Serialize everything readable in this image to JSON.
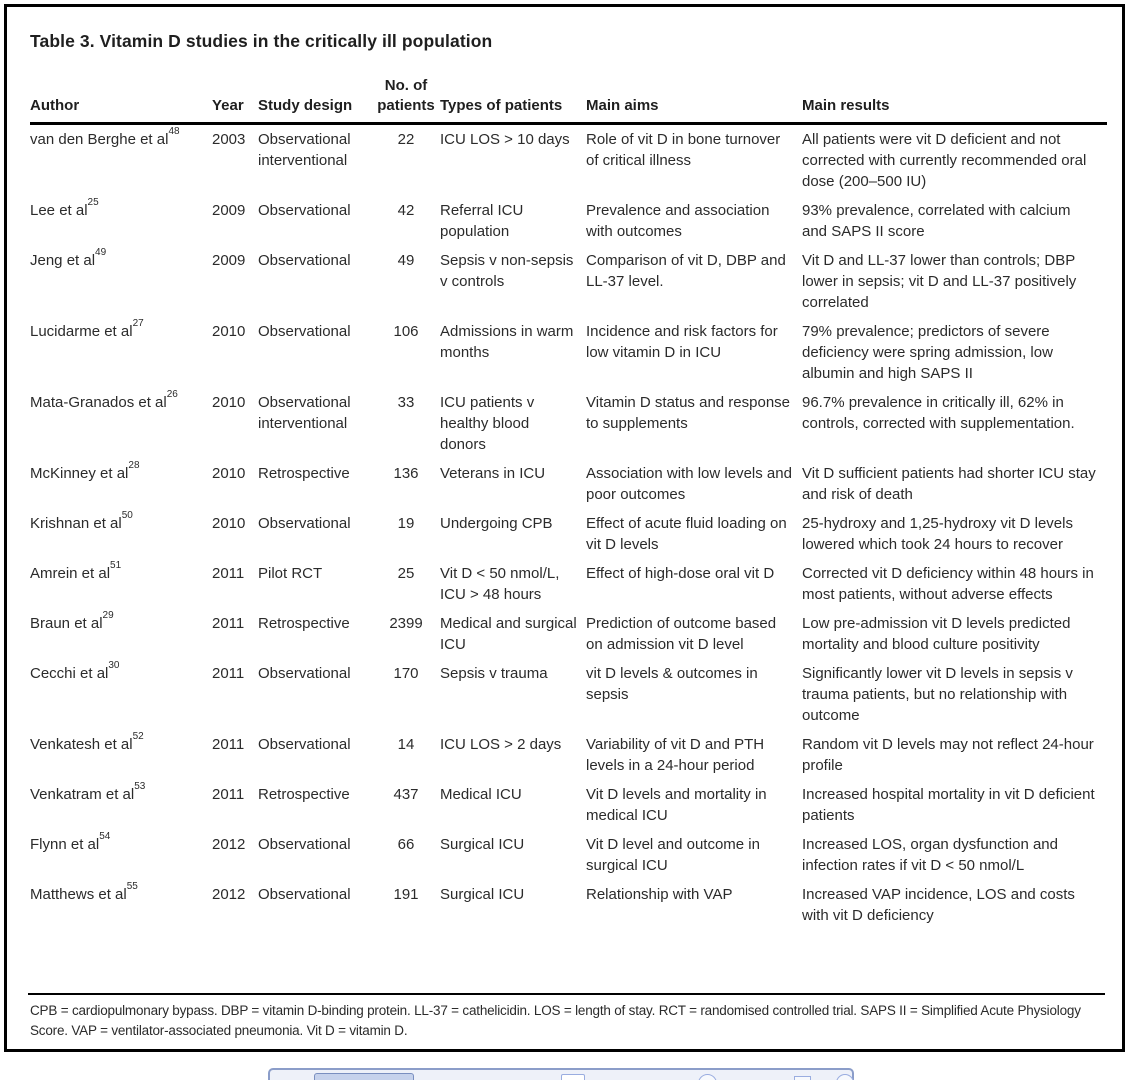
{
  "title": "Table 3. Vitamin D studies in the critically ill population",
  "table": {
    "columns": [
      "Author",
      "Year",
      "Study design",
      "No. of patients",
      "Types of patients",
      "Main aims",
      "Main results"
    ],
    "rows": [
      {
        "author": "van den Berghe et al",
        "ref": "48",
        "year": "2003",
        "design": "Observational interventional",
        "patients": "22",
        "types": "ICU LOS > 10 days",
        "aims": "Role of vit D in bone turnover of critical illness",
        "results": "All patients were vit D deficient and not corrected with currently recommended oral dose (200–500 IU)"
      },
      {
        "author": "Lee et al",
        "ref": "25",
        "year": "2009",
        "design": "Observational",
        "patients": "42",
        "types": "Referral ICU population",
        "aims": "Prevalence and association with outcomes",
        "results": "93% prevalence, correlated with calcium and SAPS II score"
      },
      {
        "author": "Jeng et al",
        "ref": "49",
        "year": "2009",
        "design": "Observational",
        "patients": "49",
        "types": "Sepsis v non-sepsis v controls",
        "aims": "Comparison of vit D, DBP and LL-37 level.",
        "results": "Vit D and LL-37 lower than controls; DBP lower in sepsis; vit D and LL-37 positively correlated"
      },
      {
        "author": "Lucidarme et al",
        "ref": "27",
        "year": "2010",
        "design": "Observational",
        "patients": "106",
        "types": "Admissions in warm months",
        "aims": "Incidence and risk factors for low vitamin D in ICU",
        "results": "79% prevalence; predictors of severe deficiency were spring admission, low albumin and high SAPS II"
      },
      {
        "author": "Mata-Granados et al",
        "ref": "26",
        "year": "2010",
        "design": "Observational interventional",
        "patients": "33",
        "types": "ICU patients v healthy blood donors",
        "aims": "Vitamin D status and response to supplements",
        "results": "96.7% prevalence in critically ill, 62% in controls, corrected with supplementation."
      },
      {
        "author": "McKinney et al",
        "ref": "28",
        "year": "2010",
        "design": "Retrospective",
        "patients": "136",
        "types": "Veterans in ICU",
        "aims": "Association with low levels and poor outcomes",
        "results": "Vit D sufficient patients had shorter ICU stay and risk of death"
      },
      {
        "author": "Krishnan et al",
        "ref": "50",
        "year": "2010",
        "design": "Observational",
        "patients": "19",
        "types": "Undergoing CPB",
        "aims": "Effect of acute fluid loading on vit D levels",
        "results": "25-hydroxy and 1,25-hydroxy vit D levels lowered which took 24 hours to recover"
      },
      {
        "author": "Amrein et al",
        "ref": "51",
        "year": "2011",
        "design": "Pilot RCT",
        "patients": "25",
        "types": "Vit D < 50 nmol/L, ICU > 48 hours",
        "aims": "Effect of high-dose oral vit D",
        "results": "Corrected vit D deficiency within 48 hours in most patients, without adverse effects"
      },
      {
        "author": "Braun et al",
        "ref": "29",
        "year": "2011",
        "design": "Retrospective",
        "patients": "2399",
        "types": "Medical and surgical ICU",
        "aims": "Prediction of outcome based on admission vit D level",
        "results": "Low pre-admission vit D levels predicted mortality and blood culture positivity"
      },
      {
        "author": "Cecchi et al",
        "ref": "30",
        "year": "2011",
        "design": "Observational",
        "patients": "170",
        "types": "Sepsis v trauma",
        "aims": "vit D levels & outcomes in sepsis",
        "results": "Significantly lower vit D levels in sepsis v trauma patients, but no relationship with outcome"
      },
      {
        "author": "Venkatesh et al",
        "ref": "52",
        "year": "2011",
        "design": "Observational",
        "patients": "14",
        "types": "ICU LOS > 2 days",
        "aims": "Variability of vit D and PTH levels in a 24-hour period",
        "results": "Random vit D levels may not reflect 24-hour profile"
      },
      {
        "author": "Venkatram et al",
        "ref": "53",
        "year": "2011",
        "design": "Retrospective",
        "patients": "437",
        "types": "Medical ICU",
        "aims": "Vit D levels and mortality in medical ICU",
        "results": "Increased hospital mortality in vit D deficient patients"
      },
      {
        "author": "Flynn et al",
        "ref": "54",
        "year": "2012",
        "design": "Observational",
        "patients": "66",
        "types": "Surgical ICU",
        "aims": "Vit D level and outcome in surgical ICU",
        "results": "Increased LOS, organ dysfunction and infection rates if vit D < 50 nmol/L"
      },
      {
        "author": "Matthews et al",
        "ref": "55",
        "year": "2012",
        "design": "Observational",
        "patients": "191",
        "types": "Surgical ICU",
        "aims": "Relationship with VAP",
        "results": "Increased VAP incidence, LOS and costs with vit D deficiency"
      }
    ]
  },
  "footnote": "CPB = cardiopulmonary bypass. DBP = vitamin D-binding protein. LL-37 = cathelicidin. LOS = length of stay. RCT = randomised controlled trial. SAPS II = Simplified Acute Physiology Score. VAP = ventilator-associated pneumonia. Vit D = vitamin D.",
  "colors": {
    "page_border": "#000000",
    "text": "#2b2b2b",
    "toolbar_border": "#8b9dc9",
    "toolbar_fill": "#eef1f9",
    "toolbar_selected_fill": "#c6d2ec",
    "toolbar_selected_border": "#7a8fc0"
  }
}
